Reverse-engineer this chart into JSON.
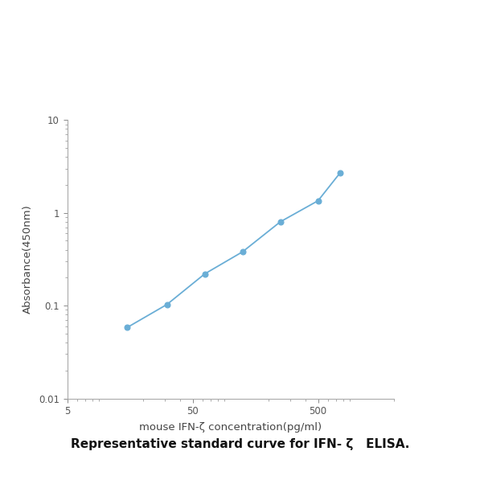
{
  "x_values": [
    15,
    31.25,
    62.5,
    125,
    250,
    500,
    750
  ],
  "y_values": [
    0.058,
    0.103,
    0.22,
    0.38,
    0.8,
    1.35,
    2.7
  ],
  "line_color": "#6aaed6",
  "marker_color": "#6aaed6",
  "marker_style": "o",
  "marker_size": 5,
  "line_width": 1.3,
  "xlabel": "mouse IFN-ζ concentration(pg/ml)",
  "ylabel": "Absorbance(450nm)",
  "xlim": [
    5,
    2000
  ],
  "ylim": [
    0.01,
    10
  ],
  "xticks": [
    5,
    50,
    500
  ],
  "xticklabels": [
    "5",
    "50",
    "500"
  ],
  "yticks": [
    0.01,
    0.1,
    1,
    10
  ],
  "yticklabels": [
    "0.01",
    "0.1",
    "1",
    "10"
  ],
  "caption": "Representative standard curve for IFN- ζ   ELISA.",
  "caption_fontsize": 11,
  "background_color": "#ffffff",
  "axis_color": "#aaaaaa",
  "tick_color": "#888888",
  "label_fontsize": 9.5,
  "tick_fontsize": 8.5
}
